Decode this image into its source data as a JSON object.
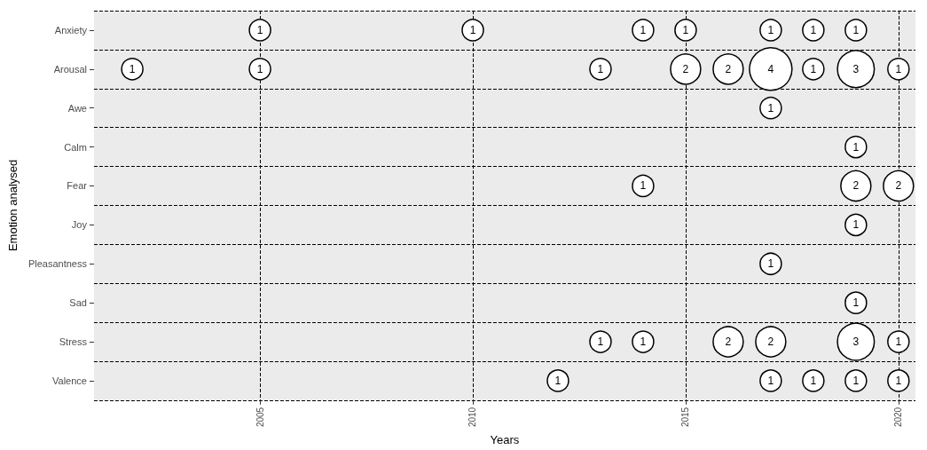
{
  "chart_data": {
    "type": "bubble",
    "orientation": "horizontal",
    "xlabel": "Years",
    "ylabel": "Emotion analysed",
    "categories": [
      "Anxiety",
      "Arousal",
      "Awe",
      "Calm",
      "Fear",
      "Joy",
      "Pleasantness",
      "Sad",
      "Stress",
      "Valence"
    ],
    "xlim": [
      2001.1,
      2020.4
    ],
    "xticks": [
      2005,
      2010,
      2015,
      2020
    ],
    "grid": true,
    "color": "#ffffff",
    "series": [
      {
        "x": [
          "Anxiety",
          "Anxiety",
          "Anxiety",
          "Anxiety",
          "Anxiety",
          "Anxiety",
          "Anxiety",
          "Arousal",
          "Arousal",
          "Arousal",
          "Arousal",
          "Arousal",
          "Arousal",
          "Arousal",
          "Arousal",
          "Arousal",
          "Awe",
          "Calm",
          "Fear",
          "Fear",
          "Fear",
          "Joy",
          "Pleasantness",
          "Sad",
          "Stress",
          "Stress",
          "Stress",
          "Stress",
          "Stress",
          "Stress",
          "Valence",
          "Valence",
          "Valence",
          "Valence",
          "Valence"
        ],
        "values": [
          2005,
          2010,
          2014,
          2015,
          2017,
          2018,
          2019,
          2002,
          2005,
          2013,
          2015,
          2016,
          2017,
          2018,
          2019,
          2020,
          2017,
          2019,
          2014,
          2019,
          2020,
          2019,
          2017,
          2019,
          2013,
          2014,
          2016,
          2017,
          2019,
          2020,
          2012,
          2017,
          2018,
          2019,
          2020
        ],
        "sizes": [
          1,
          1,
          1,
          1,
          1,
          1,
          1,
          1,
          1,
          1,
          2,
          2,
          4,
          1,
          3,
          1,
          1,
          1,
          1,
          2,
          2,
          1,
          1,
          1,
          1,
          1,
          2,
          2,
          3,
          1,
          1,
          1,
          1,
          1,
          1
        ],
        "value_labels": [
          "1",
          "1",
          "1",
          "1",
          "1",
          "1",
          "1",
          "1",
          "1",
          "1",
          "2",
          "2",
          "4",
          "1",
          "3",
          "1",
          "1",
          "1",
          "1",
          "2",
          "2",
          "1",
          "1",
          "1",
          "1",
          "1",
          "2",
          "2",
          "3",
          "1",
          "1",
          "1",
          "1",
          "1",
          "1"
        ]
      }
    ]
  }
}
